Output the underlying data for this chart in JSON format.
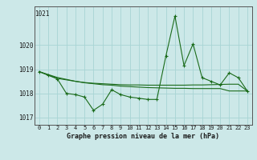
{
  "line1_x": [
    0,
    1,
    2,
    3,
    4,
    5,
    6,
    7,
    8,
    9,
    10,
    11,
    12,
    13,
    14,
    15,
    16,
    17,
    18,
    19,
    20,
    21,
    22,
    23
  ],
  "line1_y": [
    1018.9,
    1018.75,
    1018.6,
    1018.0,
    1017.95,
    1017.85,
    1017.3,
    1017.55,
    1018.15,
    1017.95,
    1017.85,
    1017.8,
    1017.75,
    1017.75,
    1019.55,
    1021.2,
    1019.15,
    1020.05,
    1018.65,
    1018.5,
    1018.35,
    1018.85,
    1018.65,
    1018.1
  ],
  "line2_x": [
    0,
    1,
    2,
    3,
    4,
    5,
    6,
    7,
    8,
    9,
    10,
    11,
    12,
    13,
    14,
    15,
    16,
    17,
    18,
    19,
    20,
    21,
    22,
    23
  ],
  "line2_y": [
    1018.9,
    1018.78,
    1018.66,
    1018.58,
    1018.5,
    1018.45,
    1018.42,
    1018.4,
    1018.38,
    1018.36,
    1018.35,
    1018.35,
    1018.34,
    1018.34,
    1018.34,
    1018.34,
    1018.34,
    1018.35,
    1018.35,
    1018.36,
    1018.37,
    1018.38,
    1018.38,
    1018.1
  ],
  "line3_x": [
    0,
    1,
    2,
    3,
    4,
    5,
    6,
    7,
    8,
    9,
    10,
    11,
    12,
    13,
    14,
    15,
    16,
    17,
    18,
    19,
    20,
    21,
    22,
    23
  ],
  "line3_y": [
    1018.9,
    1018.76,
    1018.62,
    1018.56,
    1018.5,
    1018.44,
    1018.4,
    1018.36,
    1018.34,
    1018.3,
    1018.28,
    1018.26,
    1018.24,
    1018.23,
    1018.22,
    1018.21,
    1018.21,
    1018.2,
    1018.2,
    1018.2,
    1018.2,
    1018.1,
    1018.1,
    1018.1
  ],
  "bg_color": "#cce8e8",
  "grid_color": "#b0d8d8",
  "line_color": "#1a6b1a",
  "xlabel": "Graphe pression niveau de la mer (hPa)",
  "xtick_labels": [
    "0",
    "1",
    "2",
    "3",
    "4",
    "5",
    "6",
    "7",
    "8",
    "9",
    "10",
    "11",
    "12",
    "13",
    "14",
    "15",
    "16",
    "17",
    "18",
    "19",
    "20",
    "21",
    "22",
    "23"
  ],
  "ytick_labels": [
    1017,
    1018,
    1019,
    1020
  ],
  "ylim": [
    1016.7,
    1021.6
  ],
  "xlim": [
    -0.5,
    23.5
  ]
}
